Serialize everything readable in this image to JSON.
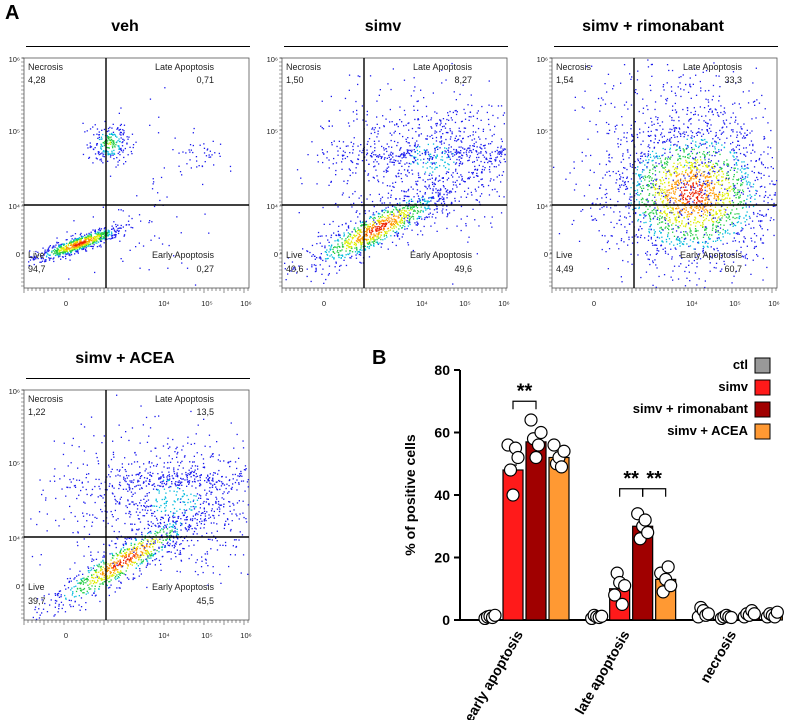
{
  "panel_labels": {
    "a": "A",
    "b": "B"
  },
  "flow_plots": [
    {
      "title": "veh",
      "quadrants": {
        "tl_name": "Necrosis",
        "tl_value": "4,28",
        "tr_name": "Late Apoptosis",
        "tr_value": "0,71",
        "bl_name": "Live",
        "bl_value": "94,7",
        "br_name": "Early Apoptosis",
        "br_value": "0,27"
      }
    },
    {
      "title": "simv",
      "quadrants": {
        "tl_name": "Necrosis",
        "tl_value": "1,50",
        "tr_name": "Late Apoptosis",
        "tr_value": "8,27",
        "bl_name": "Live",
        "bl_value": "40,6",
        "br_name": "Early Apoptosis",
        "br_value": "49,6"
      }
    },
    {
      "title": "simv + rimonabant",
      "quadrants": {
        "tl_name": "Necrosis",
        "tl_value": "1,54",
        "tr_name": "Late Apoptosis",
        "tr_value": "33,3",
        "bl_name": "Live",
        "bl_value": "4,49",
        "br_name": "Early Apoptosis",
        "br_value": "60,7"
      }
    },
    {
      "title": "simv + ACEA",
      "quadrants": {
        "tl_name": "Necrosis",
        "tl_value": "1,22",
        "tr_name": "Late Apoptosis",
        "tr_value": "13,5",
        "bl_name": "Live",
        "bl_value": "39,7",
        "br_name": "Early Apoptosis",
        "br_value": "45,5"
      }
    }
  ],
  "flow_axis_ticks": {
    "y": [
      "10⁶",
      "10⁵",
      "10⁴",
      "0"
    ],
    "x": [
      "0",
      "10⁴",
      "10⁵",
      "10⁶"
    ]
  },
  "chart_data": {
    "type": "bar",
    "categories": [
      "early apoptosis",
      "late apoptosis",
      "necrosis"
    ],
    "ylabel": "% of positive cells",
    "ylim": [
      0,
      80
    ],
    "yticks": [
      0,
      20,
      40,
      60,
      80
    ],
    "series": [
      {
        "name": "ctl",
        "color": "#999999",
        "values": [
          1,
          1,
          1.5
        ],
        "points": [
          [
            0.5,
            1,
            1.2,
            0.8,
            1.5
          ],
          [
            0.5,
            1.5,
            1,
            0.8,
            1.2
          ],
          [
            1,
            4,
            3,
            1.5,
            2
          ]
        ]
      },
      {
        "name": "simv",
        "color": "#ff1a1a",
        "values": [
          48,
          10,
          1
        ],
        "points": [
          [
            56,
            48,
            40,
            55,
            52
          ],
          [
            8,
            15,
            12,
            5,
            11
          ],
          [
            0.5,
            1,
            1.5,
            1,
            0.8
          ]
        ]
      },
      {
        "name": "simv + rimonabant",
        "color": "#a00000",
        "values": [
          57,
          30,
          1.5
        ],
        "points": [
          [
            64,
            58,
            52,
            56,
            60
          ],
          [
            34,
            26,
            30,
            32,
            28
          ],
          [
            1,
            2,
            1.5,
            3,
            2
          ]
        ]
      },
      {
        "name": "simv + ACEA",
        "color": "#ff9933",
        "values": [
          52,
          13,
          1.5
        ],
        "points": [
          [
            56,
            50,
            52,
            49,
            54
          ],
          [
            15,
            9,
            13,
            17,
            11
          ],
          [
            1,
            2,
            1.5,
            1,
            2.5
          ]
        ]
      }
    ],
    "significance": [
      {
        "category": "early apoptosis",
        "from_series": "simv",
        "to_series": "simv + rimonabant",
        "label": "**"
      },
      {
        "category": "late apoptosis",
        "from_series": "simv",
        "to_series": "simv + rimonabant",
        "label": "**"
      },
      {
        "category": "late apoptosis",
        "from_series": "simv + rimonabant",
        "to_series": "simv + ACEA",
        "label": "**"
      }
    ],
    "legend_position": "top-right"
  },
  "colors": {
    "quadrant_line": "#000000",
    "density_low": "#0000ee",
    "density_mid": "#22cc44",
    "density_high": "#ee2200"
  }
}
